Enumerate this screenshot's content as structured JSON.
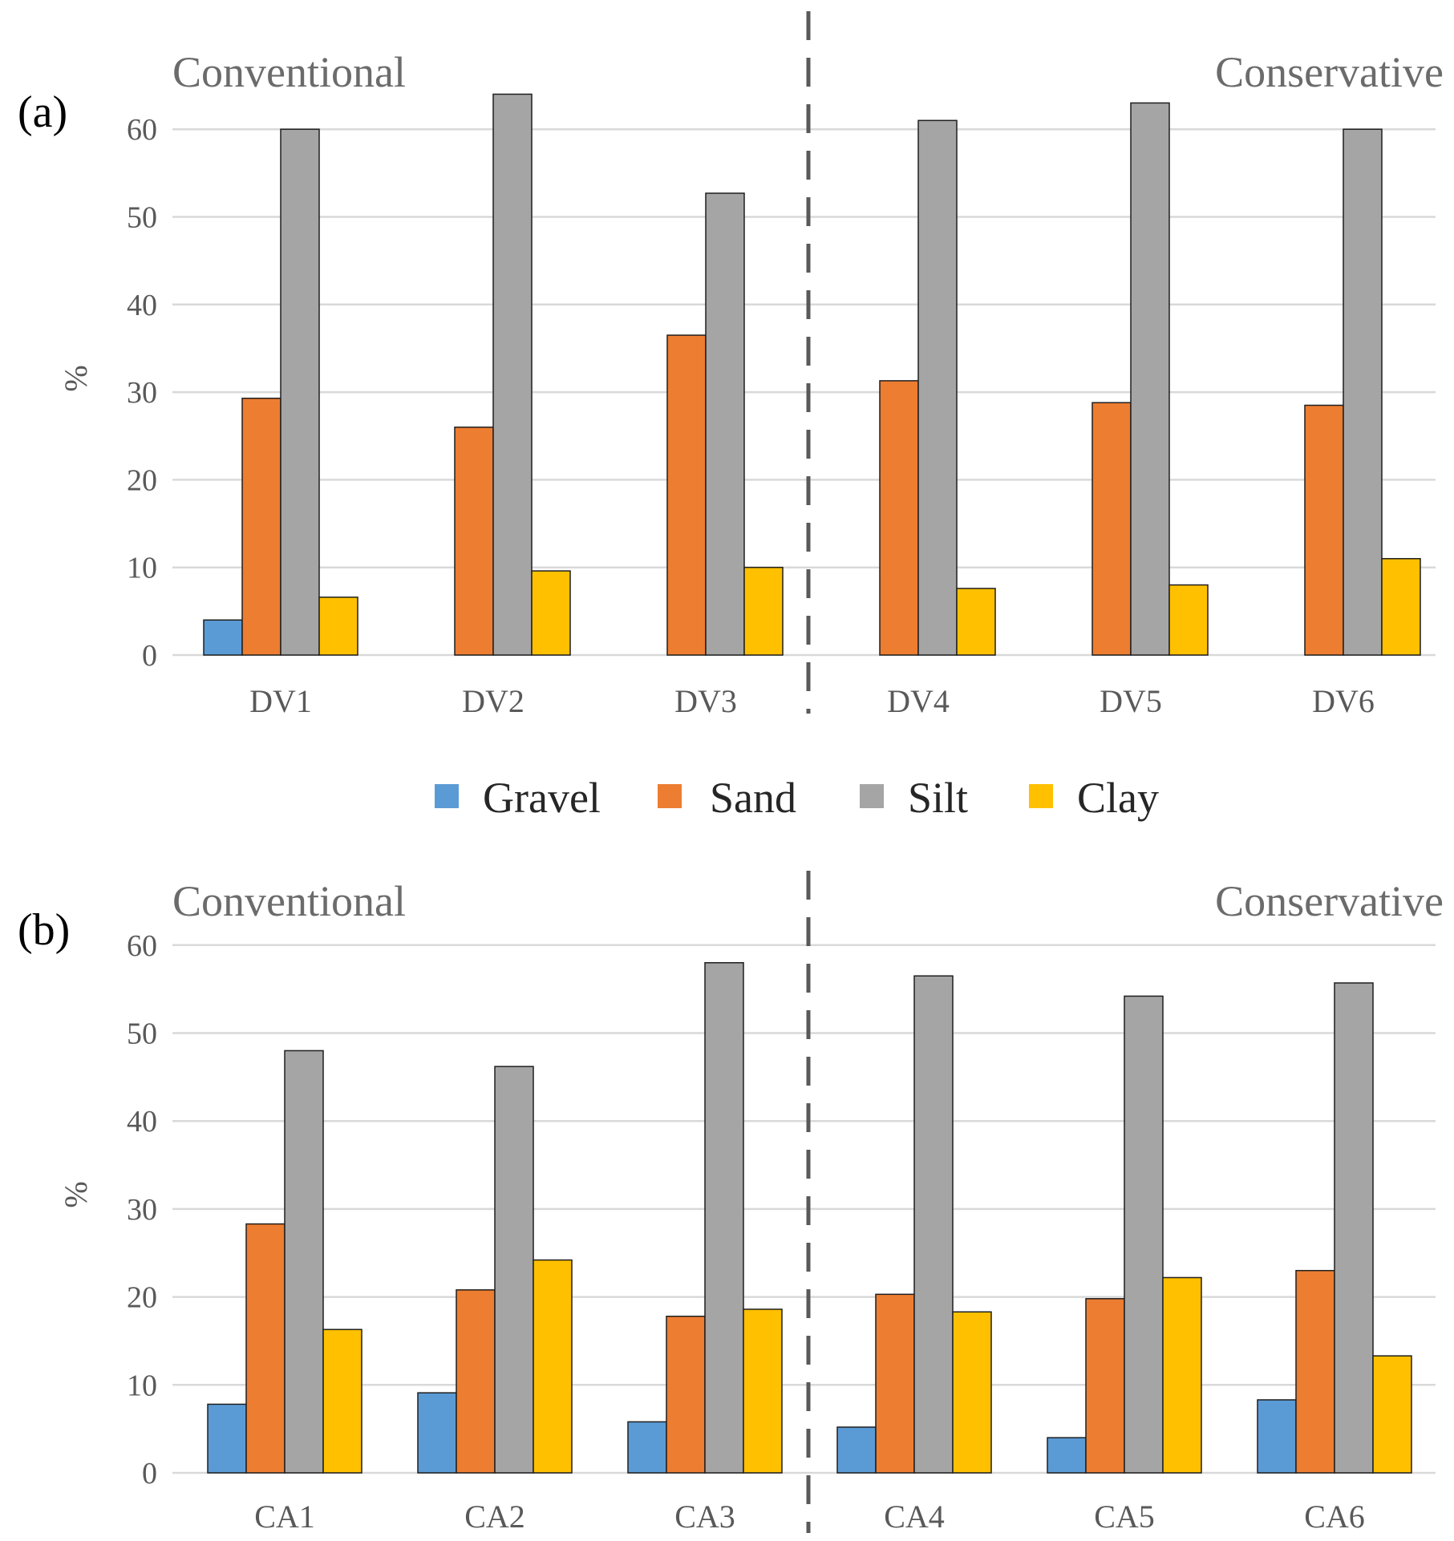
{
  "legend": [
    "Gravel",
    "Sand",
    "Silt",
    "Clay"
  ],
  "colors": {
    "Gravel": "#5b9bd5",
    "Sand": "#ed7d31",
    "Silt": "#a5a5a5",
    "Clay": "#ffc000"
  },
  "chart_data": [
    {
      "type": "bar",
      "panel_label": "(a)",
      "group_labels": [
        "Conventional",
        "Conservative"
      ],
      "ylabel": "%",
      "ylim": [
        0,
        65
      ],
      "yticks": [
        0,
        10,
        20,
        30,
        40,
        50,
        60
      ],
      "categories": [
        "DV1",
        "DV2",
        "DV3",
        "DV4",
        "DV5",
        "DV6"
      ],
      "series": [
        {
          "name": "Gravel",
          "values": [
            4,
            0,
            0,
            0,
            0,
            0
          ]
        },
        {
          "name": "Sand",
          "values": [
            29.3,
            26,
            36.5,
            31.3,
            28.8,
            28.5
          ]
        },
        {
          "name": "Silt",
          "values": [
            60,
            64,
            52.7,
            61,
            63,
            60
          ]
        },
        {
          "name": "Clay",
          "values": [
            6.6,
            9.6,
            10,
            7.6,
            8,
            11
          ]
        }
      ]
    },
    {
      "type": "bar",
      "panel_label": "(b)",
      "group_labels": [
        "Conventional",
        "Conservative"
      ],
      "ylabel": "%",
      "ylim": [
        0,
        60
      ],
      "yticks": [
        0,
        10,
        20,
        30,
        40,
        50,
        60
      ],
      "categories": [
        "CA1",
        "CA2",
        "CA3",
        "CA4",
        "CA5",
        "CA6"
      ],
      "series": [
        {
          "name": "Gravel",
          "values": [
            7.8,
            9.1,
            5.8,
            5.2,
            4,
            8.3
          ]
        },
        {
          "name": "Sand",
          "values": [
            28.3,
            20.8,
            17.8,
            20.3,
            19.8,
            23
          ]
        },
        {
          "name": "Silt",
          "values": [
            48,
            46.2,
            58,
            56.5,
            54.2,
            55.7
          ]
        },
        {
          "name": "Clay",
          "values": [
            16.3,
            24.2,
            18.6,
            18.3,
            22.2,
            13.3
          ]
        }
      ]
    }
  ]
}
